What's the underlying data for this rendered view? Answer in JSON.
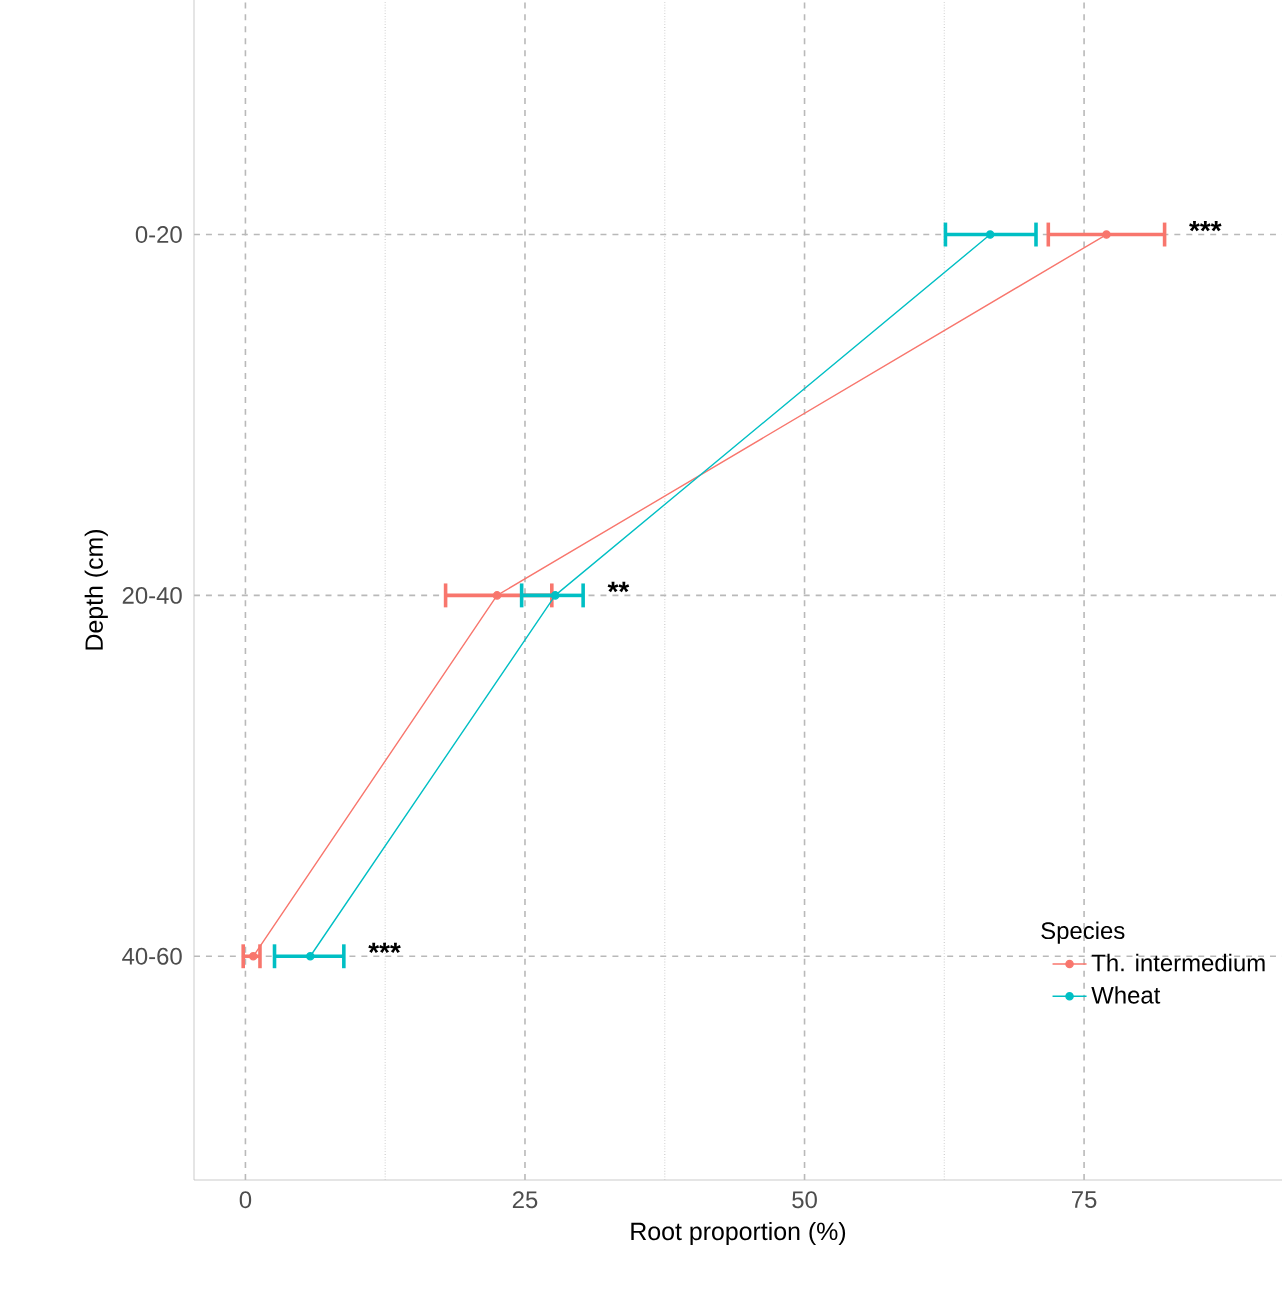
{
  "chart_data": {
    "type": "line",
    "orientation": "horizontal",
    "xlabel": "Root proportion (%)",
    "ylabel": "Depth (cm)",
    "legend_title": "Species",
    "categories": [
      "0-20",
      "20-40",
      "40-60"
    ],
    "series": [
      {
        "name": "Th. intermedium",
        "color": "#f8766d",
        "values": [
          77.0,
          22.5,
          0.7
        ],
        "errors": [
          [
            71.8,
            82.2
          ],
          [
            17.9,
            27.4
          ],
          [
            -0.2,
            1.3
          ]
        ]
      },
      {
        "name": "Wheat",
        "color": "#00bfc4",
        "values": [
          66.6,
          27.7,
          5.8
        ],
        "errors": [
          [
            62.6,
            70.7
          ],
          [
            24.7,
            30.2
          ],
          [
            2.6,
            8.8
          ]
        ]
      }
    ],
    "xlim": [
      -4.6,
      92.7
    ],
    "xticks": [
      0,
      25,
      50,
      75
    ],
    "grid": true,
    "legend": "bottom right",
    "marker": "circle",
    "line_style": "solid",
    "annotations": [
      "***",
      "**",
      "***"
    ]
  }
}
